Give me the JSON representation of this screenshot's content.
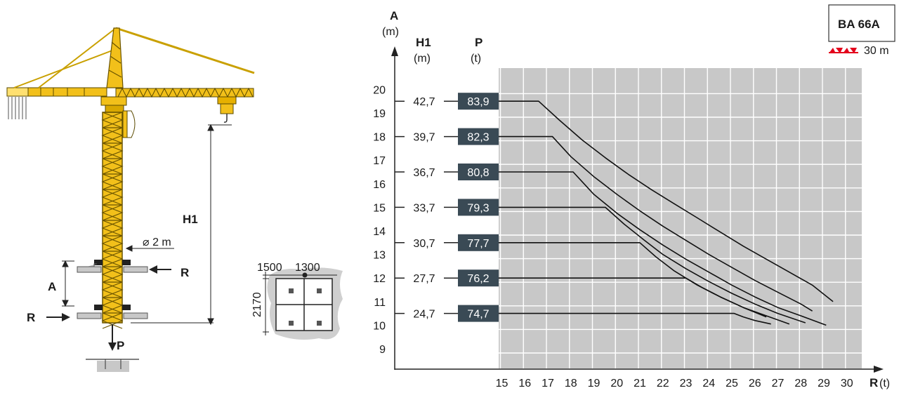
{
  "crane": {
    "label_h1": "H1",
    "label_a": "A",
    "label_r_left": "R",
    "label_r_right": "R",
    "label_p": "P",
    "mast_dimension": "⌀ 2 m"
  },
  "base_plan": {
    "dim_left": "1500",
    "dim_right": "1300",
    "dim_height": "2170"
  },
  "badge": {
    "model": "BA 66A",
    "height_value": "30 m"
  },
  "chart_data": {
    "type": "line",
    "x_axis_label": "R",
    "x_axis_unit": "(t)",
    "y_axis_label": "A",
    "y_axis_unit": "(m)",
    "column_h1_label": "H1",
    "column_h1_unit": "(m)",
    "column_p_label": "P",
    "column_p_unit": "(t)",
    "x_ticks": [
      "15",
      "16",
      "17",
      "18",
      "19",
      "20",
      "21",
      "22",
      "23",
      "24",
      "25",
      "26",
      "27",
      "28",
      "29",
      "30"
    ],
    "y_ticks": [
      "9",
      "10",
      "11",
      "12",
      "13",
      "14",
      "15",
      "16",
      "17",
      "18",
      "19",
      "20"
    ],
    "xlim": [
      10.5,
      31
    ],
    "ylim": [
      8.25,
      20.6
    ],
    "grid": true,
    "table": [
      {
        "h1": "42,7",
        "p": "83,9",
        "a": 19.5
      },
      {
        "h1": "39,7",
        "p": "82,3",
        "a": 18.0
      },
      {
        "h1": "36,7",
        "p": "80,8",
        "a": 16.5
      },
      {
        "h1": "33,7",
        "p": "79,3",
        "a": 15.0
      },
      {
        "h1": "30,7",
        "p": "77,7",
        "a": 13.5
      },
      {
        "h1": "27,7",
        "p": "76,2",
        "a": 12.0
      },
      {
        "h1": "24,7",
        "p": "74,7",
        "a": 10.5
      }
    ],
    "series": [
      {
        "x": [
          15.0,
          16.6,
          17.5,
          18.5,
          19.5,
          20.5,
          21.5,
          22.5,
          23.5,
          24.5,
          25.5,
          26.5,
          27.5,
          28.5,
          29.4
        ],
        "y": [
          19.5,
          19.5,
          18.7,
          17.85,
          17.1,
          16.4,
          15.75,
          15.15,
          14.55,
          13.95,
          13.35,
          12.8,
          12.25,
          11.7,
          11.0
        ]
      },
      {
        "x": [
          15.0,
          17.2,
          18.0,
          19.0,
          20.0,
          21.0,
          22.0,
          23.0,
          24.0,
          25.0,
          26.0,
          27.0,
          28.0,
          28.5
        ],
        "y": [
          18.0,
          18.0,
          17.15,
          16.3,
          15.55,
          14.85,
          14.2,
          13.6,
          13.0,
          12.45,
          11.9,
          11.4,
          10.9,
          10.6
        ]
      },
      {
        "x": [
          15.0,
          18.1,
          19.0,
          20.0,
          21.0,
          22.0,
          23.0,
          24.0,
          25.0,
          26.0,
          27.0,
          28.0,
          29.1
        ],
        "y": [
          16.5,
          16.5,
          15.55,
          14.75,
          14.05,
          13.4,
          12.8,
          12.25,
          11.7,
          11.2,
          10.75,
          10.4,
          10.0
        ]
      },
      {
        "x": [
          15.0,
          19.5,
          20.3,
          21.2,
          22.0,
          23.0,
          24.0,
          25.0,
          26.0,
          27.0,
          28.2
        ],
        "y": [
          15.0,
          15.0,
          14.3,
          13.6,
          13.0,
          12.4,
          11.85,
          11.35,
          10.9,
          10.5,
          10.1
        ]
      },
      {
        "x": [
          15.0,
          21.0,
          21.7,
          22.5,
          23.5,
          24.5,
          25.5,
          26.5,
          27.5
        ],
        "y": [
          13.5,
          13.5,
          12.9,
          12.3,
          11.7,
          11.2,
          10.75,
          10.4,
          10.05
        ]
      },
      {
        "x": [
          15.0,
          23.0,
          23.7,
          24.5,
          25.5,
          26.5
        ],
        "y": [
          12.0,
          12.0,
          11.6,
          11.2,
          10.75,
          10.35
        ]
      },
      {
        "x": [
          15.0,
          25.1,
          25.5,
          26.0,
          26.7
        ],
        "y": [
          10.5,
          10.5,
          10.35,
          10.2,
          10.05
        ]
      }
    ]
  }
}
